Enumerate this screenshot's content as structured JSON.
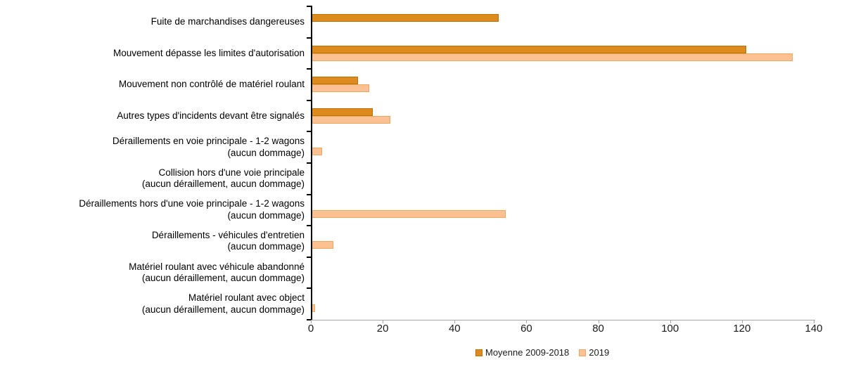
{
  "chart_data": {
    "type": "bar",
    "orientation": "horizontal",
    "title": "",
    "xlabel": "",
    "ylabel": "",
    "categories": [
      [
        "Fuite de marchandises dangereuses"
      ],
      [
        "Mouvement dépasse les limites d'autorisation"
      ],
      [
        "Mouvement non contrôlé de matériel roulant"
      ],
      [
        "Autres types d'incidents devant être signalés"
      ],
      [
        "Déraillements en voie principale - 1-2 wagons",
        "(aucun dommage)"
      ],
      [
        "Collision hors d'une voie principale",
        "(aucun déraillement, aucun dommage)"
      ],
      [
        "Déraillements hors d'une voie principale - 1-2 wagons",
        "(aucun dommage)"
      ],
      [
        "Déraillements - véhicules d'entretien",
        "(aucun dommage)"
      ],
      [
        "Matériel roulant avec véhicule abandonné",
        "(aucun déraillement, aucun dommage)"
      ],
      [
        "Matériel roulant avec object",
        "(aucun déraillement, aucun dommage)"
      ]
    ],
    "series": [
      {
        "name": "Moyenne 2009-2018",
        "fill": "#DD8A1F",
        "border": "#B97100",
        "values": [
          52,
          121,
          13,
          17,
          0,
          0,
          0,
          0,
          0,
          0
        ]
      },
      {
        "name": "2019",
        "fill": "#FBC192",
        "border": "#F2A55E",
        "values": [
          0,
          134,
          16,
          22,
          3,
          0,
          54,
          6,
          0,
          1
        ]
      }
    ],
    "xlim": [
      0,
      140
    ],
    "xticks": [
      "0",
      "20",
      "40",
      "60",
      "80",
      "100",
      "120",
      "140"
    ],
    "legend_position": "bottom",
    "grid": false
  }
}
